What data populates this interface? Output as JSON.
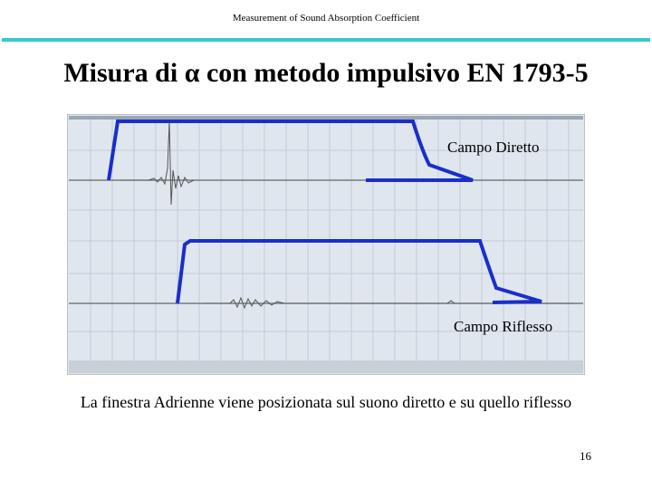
{
  "header": {
    "title": "Measurement of Sound Absorption Coefficient"
  },
  "slide": {
    "title": "Misura di α con metodo impulsivo EN 1793-5",
    "figure": {
      "labels": [
        "Campo Diretto",
        "Campo Riflesso"
      ]
    },
    "caption": "La finestra Adrienne viene posizionata sul suono diretto e su quello riflesso",
    "page_number": "16"
  }
}
